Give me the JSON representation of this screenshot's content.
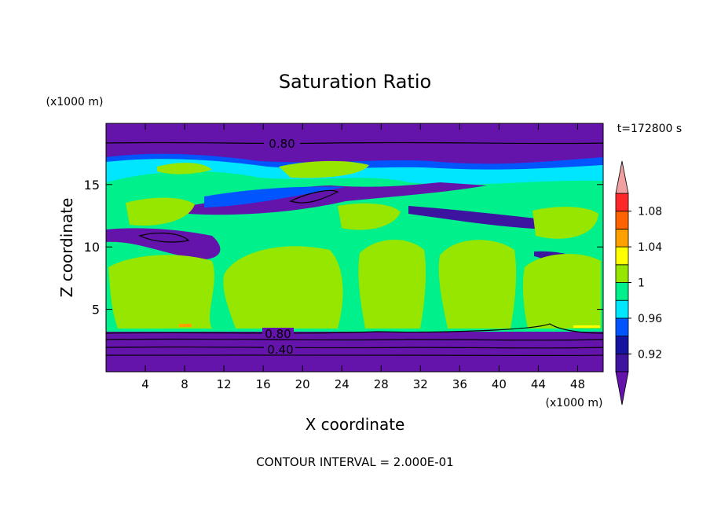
{
  "chart_data": {
    "type": "contour",
    "title": "Saturation Ratio",
    "x_label": "X coordinate",
    "y_label": "Z coordinate",
    "x_unit": "(x1000 m)",
    "y_unit": "(x1000 m)",
    "time_label": "t=172800 s",
    "footer": "CONTOUR INTERVAL = 2.000E-01",
    "contour_labels": [
      "0.80",
      "0.80",
      "0.40"
    ],
    "xlim": [
      0,
      50.6
    ],
    "xticks": [
      4,
      8,
      12,
      16,
      20,
      24,
      28,
      32,
      36,
      40,
      44,
      48
    ],
    "ylim": [
      0,
      19.9
    ],
    "yticks": [
      5,
      10,
      15
    ],
    "levels": [
      0.9,
      0.92,
      0.94,
      0.96,
      0.98,
      1.0,
      1.02,
      1.04,
      1.06,
      1.08,
      1.1
    ],
    "colors": [
      "#3c14a0",
      "#1414a0",
      "#0055ff",
      "#00e6ff",
      "#00f08c",
      "#96e600",
      "#ffff00",
      "#ffa000",
      "#ff6400",
      "#ff2828"
    ],
    "under_color": "#6414aa",
    "over_color": "#f0a0a0",
    "cbar_ticks": [
      0.92,
      0.96,
      1,
      1.04,
      1.08
    ]
  }
}
